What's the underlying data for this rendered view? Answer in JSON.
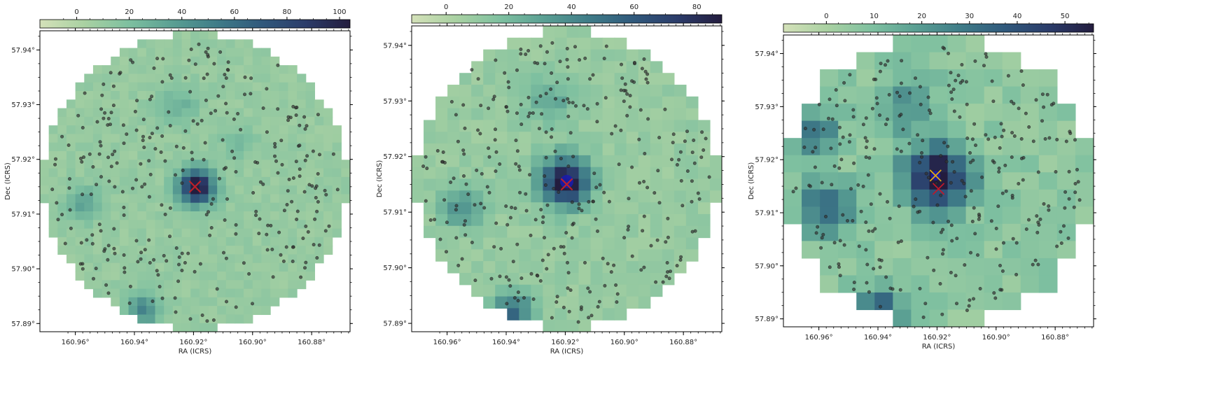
{
  "colormap": {
    "name": "crest-like sequential",
    "stops": [
      "#d4e1b9",
      "#a9d1a2",
      "#7ec0a0",
      "#5a9f93",
      "#3f7c88",
      "#30597c",
      "#2b3c6a",
      "#231c3e"
    ]
  },
  "marker_colors": {
    "points": "#333333",
    "cross_primary": "#e0a818",
    "cross_secondary": "#c0182a",
    "blob": "#1a1ab0"
  },
  "chart_data": [
    {
      "type": "heatmap",
      "colorbar": {
        "ticks": [
          0,
          20,
          40,
          60,
          80,
          100
        ],
        "range": [
          -14,
          104
        ],
        "label": ""
      },
      "xlabel": "RA (ICRS)",
      "ylabel": "Dec (ICRS)",
      "xlim": [
        160.972,
        160.867
      ],
      "ylim": [
        57.8885,
        57.9435
      ],
      "xticks": [
        160.96,
        160.94,
        160.92,
        160.9,
        160.88
      ],
      "xtick_labels": [
        "160.96°",
        "160.94°",
        "160.92°",
        "160.90°",
        "160.88°"
      ],
      "yticks": [
        57.89,
        57.9,
        57.91,
        57.92,
        57.93,
        57.94
      ],
      "ytick_labels": [
        "57.89°",
        "57.90°",
        "57.91°",
        "57.92°",
        "57.93°",
        "57.94°"
      ],
      "grid_size": 35,
      "footprint_radius": 0.49,
      "base_value": 10,
      "hotspots": [
        {
          "ra": 160.919,
          "dec": 57.915,
          "peak": 100,
          "sigma": 0.0022
        },
        {
          "ra": 160.937,
          "dec": 57.8925,
          "peak": 40,
          "sigma": 0.002
        },
        {
          "ra": 160.957,
          "dec": 57.912,
          "peak": 26,
          "sigma": 0.0022
        },
        {
          "ra": 160.925,
          "dec": 57.93,
          "peak": 18,
          "sigma": 0.0025
        },
        {
          "ra": 160.905,
          "dec": 57.923,
          "peak": 14,
          "sigma": 0.002
        }
      ],
      "cross_marks": [
        {
          "ra": 160.9195,
          "dec": 57.915,
          "color_key": "cross_primary"
        },
        {
          "ra": 160.9195,
          "dec": 57.915,
          "color_key": "cross_secondary"
        }
      ],
      "blob_marks": [],
      "points_count": 310,
      "seed": 11
    },
    {
      "type": "heatmap",
      "colorbar": {
        "ticks": [
          0,
          20,
          40,
          60,
          80
        ],
        "range": [
          -11,
          88
        ],
        "label": ""
      },
      "xlabel": "RA (ICRS)",
      "ylabel": "Dec (ICRS)",
      "xlim": [
        160.972,
        160.867
      ],
      "ylim": [
        57.8885,
        57.9435
      ],
      "xticks": [
        160.96,
        160.94,
        160.92,
        160.9,
        160.88
      ],
      "xtick_labels": [
        "160.96°",
        "160.94°",
        "160.92°",
        "160.90°",
        "160.88°"
      ],
      "yticks": [
        57.89,
        57.9,
        57.91,
        57.92,
        57.93,
        57.94
      ],
      "ytick_labels": [
        "57.89°",
        "57.90°",
        "57.91°",
        "57.92°",
        "57.93°",
        "57.94°"
      ],
      "grid_size": 26,
      "footprint_radius": 0.49,
      "base_value": 9,
      "hotspots": [
        {
          "ra": 160.92,
          "dec": 57.9155,
          "peak": 85,
          "sigma": 0.003
        },
        {
          "ra": 160.938,
          "dec": 57.892,
          "peak": 45,
          "sigma": 0.0025
        },
        {
          "ra": 160.955,
          "dec": 57.911,
          "peak": 30,
          "sigma": 0.0025
        },
        {
          "ra": 160.925,
          "dec": 57.93,
          "peak": 20,
          "sigma": 0.003
        }
      ],
      "cross_marks": [
        {
          "ra": 160.9195,
          "dec": 57.915,
          "color_key": "cross_primary"
        },
        {
          "ra": 160.9195,
          "dec": 57.915,
          "color_key": "cross_secondary"
        }
      ],
      "blob_marks": [
        {
          "ra": 160.9195,
          "dec": 57.9155,
          "size": 0.0012
        }
      ],
      "points_count": 310,
      "seed": 23
    },
    {
      "type": "heatmap",
      "colorbar": {
        "ticks": [
          0,
          10,
          20,
          30,
          40,
          50
        ],
        "range": [
          -9,
          56
        ],
        "label": ""
      },
      "xlabel": "RA (ICRS)",
      "ylabel": "Dec (ICRS)",
      "xlim": [
        160.972,
        160.867
      ],
      "ylim": [
        57.8885,
        57.9435
      ],
      "xticks": [
        160.96,
        160.94,
        160.92,
        160.9,
        160.88
      ],
      "xtick_labels": [
        "160.96°",
        "160.94°",
        "160.92°",
        "160.90°",
        "160.88°"
      ],
      "yticks": [
        57.89,
        57.9,
        57.91,
        57.92,
        57.93,
        57.94
      ],
      "ytick_labels": [
        "57.89°",
        "57.90°",
        "57.91°",
        "57.92°",
        "57.93°",
        "57.94°"
      ],
      "grid_size": 17,
      "footprint_radius": 0.5,
      "base_value": 6,
      "hotspots": [
        {
          "ra": 160.92,
          "dec": 57.9165,
          "peak": 56,
          "sigma": 0.004
        },
        {
          "ra": 160.94,
          "dec": 57.8905,
          "peak": 40,
          "sigma": 0.003
        },
        {
          "ra": 160.958,
          "dec": 57.911,
          "peak": 30,
          "sigma": 0.0035
        },
        {
          "ra": 160.962,
          "dec": 57.925,
          "peak": 26,
          "sigma": 0.003
        },
        {
          "ra": 160.93,
          "dec": 57.93,
          "peak": 16,
          "sigma": 0.004
        }
      ],
      "cross_marks": [
        {
          "ra": 160.9205,
          "dec": 57.917,
          "color_key": "cross_primary"
        },
        {
          "ra": 160.9195,
          "dec": 57.9145,
          "color_key": "cross_secondary"
        }
      ],
      "blob_marks": [
        {
          "ra": 160.9205,
          "dec": 57.917,
          "size": 0.0009
        }
      ],
      "points_count": 300,
      "seed": 37
    }
  ]
}
